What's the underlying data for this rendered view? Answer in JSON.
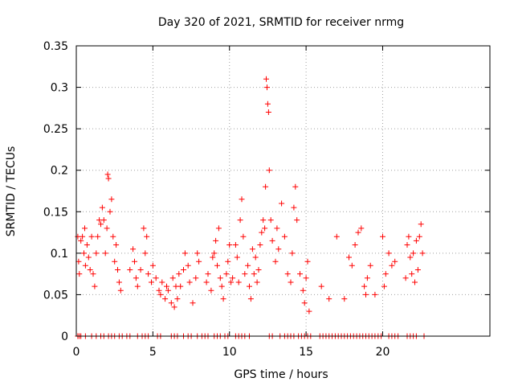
{
  "chart_data": {
    "type": "scatter",
    "title": "Day 320 of 2021, SRMTID for receiver nrmg",
    "xlabel": "GPS time / hours",
    "ylabel": "SRMTID / TECUs",
    "xlim": [
      0,
      27
    ],
    "ylim": [
      0,
      0.35
    ],
    "x_ticks": [
      0,
      5,
      10,
      15,
      20
    ],
    "x_tick_labels": [
      "0",
      "5",
      "10",
      "15",
      "20"
    ],
    "y_ticks": [
      0,
      0.05,
      0.1,
      0.15,
      0.2,
      0.25,
      0.3,
      0.35
    ],
    "y_tick_labels": [
      "0",
      "0.05",
      "0.1",
      "0.15",
      "0.2",
      "0.25",
      "0.3",
      "0.35"
    ],
    "grid": true,
    "marker": "+",
    "series": [
      {
        "name": "SRMTID",
        "color": "#ff0000",
        "points": [
          [
            0.1,
            0.12
          ],
          [
            0.15,
            0.09
          ],
          [
            0.2,
            0.075
          ],
          [
            0.3,
            0.115
          ],
          [
            0.4,
            0.12
          ],
          [
            0.5,
            0.1
          ],
          [
            0.55,
            0.13
          ],
          [
            0.6,
            0.085
          ],
          [
            0.7,
            0.11
          ],
          [
            0.8,
            0.095
          ],
          [
            0.9,
            0.08
          ],
          [
            1.0,
            0.12
          ],
          [
            1.1,
            0.075
          ],
          [
            1.2,
            0.06
          ],
          [
            1.3,
            0.1
          ],
          [
            1.4,
            0.12
          ],
          [
            1.5,
            0.14
          ],
          [
            1.6,
            0.135
          ],
          [
            1.7,
            0.155
          ],
          [
            1.8,
            0.14
          ],
          [
            1.9,
            0.1
          ],
          [
            2.0,
            0.13
          ],
          [
            2.05,
            0.195
          ],
          [
            2.1,
            0.19
          ],
          [
            2.2,
            0.15
          ],
          [
            2.3,
            0.165
          ],
          [
            2.4,
            0.12
          ],
          [
            2.5,
            0.09
          ],
          [
            2.6,
            0.11
          ],
          [
            2.7,
            0.08
          ],
          [
            2.8,
            0.065
          ],
          [
            2.9,
            0.055
          ],
          [
            3.5,
            0.08
          ],
          [
            3.7,
            0.105
          ],
          [
            3.8,
            0.09
          ],
          [
            3.9,
            0.07
          ],
          [
            4.0,
            0.06
          ],
          [
            4.2,
            0.08
          ],
          [
            4.4,
            0.13
          ],
          [
            4.5,
            0.1
          ],
          [
            4.6,
            0.12
          ],
          [
            4.7,
            0.075
          ],
          [
            4.9,
            0.065
          ],
          [
            5.0,
            0.085
          ],
          [
            5.2,
            0.07
          ],
          [
            5.4,
            0.055
          ],
          [
            5.5,
            0.05
          ],
          [
            5.6,
            0.065
          ],
          [
            5.8,
            0.045
          ],
          [
            5.9,
            0.06
          ],
          [
            6.0,
            0.055
          ],
          [
            6.2,
            0.04
          ],
          [
            6.3,
            0.07
          ],
          [
            6.4,
            0.035
          ],
          [
            6.5,
            0.06
          ],
          [
            6.6,
            0.045
          ],
          [
            6.7,
            0.075
          ],
          [
            6.8,
            0.06
          ],
          [
            7.0,
            0.08
          ],
          [
            7.1,
            0.1
          ],
          [
            7.3,
            0.085
          ],
          [
            7.4,
            0.065
          ],
          [
            7.6,
            0.04
          ],
          [
            7.8,
            0.07
          ],
          [
            7.9,
            0.1
          ],
          [
            8.0,
            0.09
          ],
          [
            8.5,
            0.065
          ],
          [
            8.6,
            0.075
          ],
          [
            8.8,
            0.055
          ],
          [
            8.9,
            0.095
          ],
          [
            9.0,
            0.1
          ],
          [
            9.1,
            0.115
          ],
          [
            9.2,
            0.085
          ],
          [
            9.3,
            0.13
          ],
          [
            9.4,
            0.07
          ],
          [
            9.5,
            0.06
          ],
          [
            9.6,
            0.045
          ],
          [
            9.8,
            0.075
          ],
          [
            9.9,
            0.09
          ],
          [
            10.0,
            0.11
          ],
          [
            10.1,
            0.065
          ],
          [
            10.2,
            0.07
          ],
          [
            10.4,
            0.11
          ],
          [
            10.5,
            0.095
          ],
          [
            10.6,
            0.065
          ],
          [
            10.7,
            0.14
          ],
          [
            10.8,
            0.165
          ],
          [
            10.9,
            0.12
          ],
          [
            11.0,
            0.075
          ],
          [
            11.2,
            0.085
          ],
          [
            11.3,
            0.06
          ],
          [
            11.4,
            0.045
          ],
          [
            11.5,
            0.105
          ],
          [
            11.6,
            0.075
          ],
          [
            11.7,
            0.095
          ],
          [
            11.8,
            0.065
          ],
          [
            11.9,
            0.08
          ],
          [
            12.0,
            0.11
          ],
          [
            12.1,
            0.125
          ],
          [
            12.2,
            0.14
          ],
          [
            12.3,
            0.13
          ],
          [
            12.35,
            0.18
          ],
          [
            12.4,
            0.31
          ],
          [
            12.45,
            0.3
          ],
          [
            12.5,
            0.28
          ],
          [
            12.55,
            0.27
          ],
          [
            12.6,
            0.2
          ],
          [
            12.7,
            0.14
          ],
          [
            12.8,
            0.115
          ],
          [
            13.0,
            0.09
          ],
          [
            13.1,
            0.13
          ],
          [
            13.2,
            0.105
          ],
          [
            13.4,
            0.16
          ],
          [
            13.6,
            0.12
          ],
          [
            13.8,
            0.075
          ],
          [
            14.0,
            0.065
          ],
          [
            14.1,
            0.1
          ],
          [
            14.2,
            0.155
          ],
          [
            14.3,
            0.18
          ],
          [
            14.4,
            0.14
          ],
          [
            14.6,
            0.075
          ],
          [
            14.8,
            0.055
          ],
          [
            14.9,
            0.04
          ],
          [
            15.0,
            0.07
          ],
          [
            15.1,
            0.09
          ],
          [
            15.2,
            0.03
          ],
          [
            16.0,
            0.06
          ],
          [
            16.5,
            0.045
          ],
          [
            17.0,
            0.12
          ],
          [
            17.5,
            0.045
          ],
          [
            17.8,
            0.095
          ],
          [
            18.0,
            0.085
          ],
          [
            18.2,
            0.11
          ],
          [
            18.4,
            0.125
          ],
          [
            18.6,
            0.13
          ],
          [
            18.8,
            0.06
          ],
          [
            18.9,
            0.05
          ],
          [
            19.0,
            0.07
          ],
          [
            19.2,
            0.085
          ],
          [
            19.5,
            0.05
          ],
          [
            20.0,
            0.12
          ],
          [
            20.1,
            0.06
          ],
          [
            20.2,
            0.075
          ],
          [
            20.4,
            0.1
          ],
          [
            20.6,
            0.085
          ],
          [
            20.8,
            0.09
          ],
          [
            21.5,
            0.07
          ],
          [
            21.6,
            0.11
          ],
          [
            21.7,
            0.12
          ],
          [
            21.8,
            0.095
          ],
          [
            21.9,
            0.075
          ],
          [
            22.0,
            0.1
          ],
          [
            22.1,
            0.065
          ],
          [
            22.2,
            0.115
          ],
          [
            22.3,
            0.08
          ],
          [
            22.4,
            0.12
          ],
          [
            22.5,
            0.135
          ],
          [
            22.6,
            0.1
          ],
          [
            0.1,
            0.0
          ],
          [
            0.2,
            0.0
          ],
          [
            0.3,
            0.0
          ],
          [
            0.6,
            0.0
          ],
          [
            1.0,
            0.0
          ],
          [
            1.3,
            0.0
          ],
          [
            1.6,
            0.0
          ],
          [
            1.8,
            0.0
          ],
          [
            2.1,
            0.0
          ],
          [
            2.3,
            0.0
          ],
          [
            2.5,
            0.0
          ],
          [
            2.8,
            0.0
          ],
          [
            3.0,
            0.0
          ],
          [
            3.3,
            0.0
          ],
          [
            3.5,
            0.0
          ],
          [
            4.0,
            0.0
          ],
          [
            4.3,
            0.0
          ],
          [
            4.5,
            0.0
          ],
          [
            4.7,
            0.0
          ],
          [
            5.3,
            0.0
          ],
          [
            5.5,
            0.0
          ],
          [
            6.2,
            0.0
          ],
          [
            6.4,
            0.0
          ],
          [
            6.6,
            0.0
          ],
          [
            7.0,
            0.0
          ],
          [
            7.3,
            0.0
          ],
          [
            7.5,
            0.0
          ],
          [
            7.9,
            0.0
          ],
          [
            8.2,
            0.0
          ],
          [
            8.4,
            0.0
          ],
          [
            8.6,
            0.0
          ],
          [
            9.0,
            0.0
          ],
          [
            9.2,
            0.0
          ],
          [
            9.4,
            0.0
          ],
          [
            9.7,
            0.0
          ],
          [
            9.9,
            0.0
          ],
          [
            10.4,
            0.0
          ],
          [
            10.6,
            0.0
          ],
          [
            10.8,
            0.0
          ],
          [
            11.0,
            0.0
          ],
          [
            11.3,
            0.0
          ],
          [
            12.6,
            0.0
          ],
          [
            12.8,
            0.0
          ],
          [
            13.3,
            0.0
          ],
          [
            13.6,
            0.0
          ],
          [
            13.8,
            0.0
          ],
          [
            14.0,
            0.0
          ],
          [
            14.2,
            0.0
          ],
          [
            14.5,
            0.0
          ],
          [
            14.7,
            0.0
          ],
          [
            14.9,
            0.0
          ],
          [
            15.1,
            0.0
          ],
          [
            15.3,
            0.0
          ],
          [
            15.9,
            0.0
          ],
          [
            16.1,
            0.0
          ],
          [
            16.3,
            0.0
          ],
          [
            16.5,
            0.0
          ],
          [
            16.7,
            0.0
          ],
          [
            16.9,
            0.0
          ],
          [
            17.1,
            0.0
          ],
          [
            17.3,
            0.0
          ],
          [
            17.5,
            0.0
          ],
          [
            17.7,
            0.0
          ],
          [
            17.9,
            0.0
          ],
          [
            18.1,
            0.0
          ],
          [
            18.3,
            0.0
          ],
          [
            18.5,
            0.0
          ],
          [
            18.7,
            0.0
          ],
          [
            18.9,
            0.0
          ],
          [
            19.1,
            0.0
          ],
          [
            19.3,
            0.0
          ],
          [
            19.5,
            0.0
          ],
          [
            19.7,
            0.0
          ],
          [
            19.9,
            0.0
          ],
          [
            20.4,
            0.0
          ],
          [
            20.6,
            0.0
          ],
          [
            20.8,
            0.0
          ],
          [
            21.0,
            0.0
          ],
          [
            21.6,
            0.0
          ],
          [
            21.8,
            0.0
          ],
          [
            22.0,
            0.0
          ],
          [
            22.2,
            0.0
          ],
          [
            22.7,
            0.0
          ]
        ]
      }
    ]
  }
}
